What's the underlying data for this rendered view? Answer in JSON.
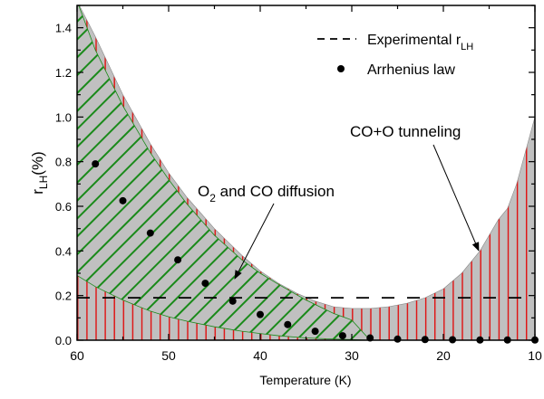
{
  "chart_data": {
    "type": "area",
    "title": "",
    "xlabel": "Temperature (K)",
    "ylabel_main": "r",
    "ylabel_sub": "LH",
    "ylabel_suffix": "(%)",
    "xlim": [
      60,
      10
    ],
    "ylim": [
      0,
      1.5
    ],
    "xticks": [
      60,
      50,
      40,
      30,
      20,
      10
    ],
    "yticks": [
      "0.0",
      "0.2",
      "0.4",
      "0.6",
      "0.8",
      "1.0",
      "1.2",
      "1.4"
    ],
    "grid": false,
    "legend_position": "top-right",
    "legend": [
      {
        "label_main": "Experimental r",
        "label_sub": "LH",
        "style": "dashed"
      },
      {
        "label_main": "Arrhenius law",
        "label_sub": "",
        "style": "dot"
      }
    ],
    "experimental_rLH": 0.19,
    "arrhenius": {
      "x": [
        58,
        55,
        52,
        49,
        46,
        43,
        40,
        37,
        34,
        31,
        28,
        25,
        22,
        19,
        16,
        13,
        10
      ],
      "y": [
        0.79,
        0.625,
        0.48,
        0.36,
        0.255,
        0.175,
        0.115,
        0.07,
        0.04,
        0.02,
        0.01,
        0.005,
        0.003,
        0.002,
        0.001,
        0.001,
        0.001
      ]
    },
    "regions": [
      {
        "name": "O2 and CO diffusion",
        "color": "#1a8a1a",
        "x": [
          60,
          58,
          55,
          52,
          50,
          48,
          45,
          42,
          40,
          38,
          35,
          32,
          30,
          28
        ],
        "upper": [
          1.52,
          1.3,
          1.05,
          0.84,
          0.72,
          0.61,
          0.47,
          0.36,
          0.3,
          0.25,
          0.18,
          0.12,
          0.09,
          0.0
        ],
        "lower": [
          0.29,
          0.24,
          0.18,
          0.13,
          0.105,
          0.085,
          0.06,
          0.04,
          0.03,
          0.02,
          0.01,
          0.005,
          0.003,
          0.0
        ]
      },
      {
        "name": "CO+O tunneling",
        "color": "#e01010",
        "x": [
          61,
          58,
          55,
          52,
          50,
          48,
          45,
          42,
          40,
          38,
          36,
          34,
          32,
          30,
          28,
          26,
          24,
          22,
          20,
          18,
          16,
          14,
          13,
          12,
          11,
          10
        ],
        "upper": [
          1.6,
          1.36,
          1.1,
          0.88,
          0.75,
          0.64,
          0.5,
          0.38,
          0.31,
          0.255,
          0.21,
          0.175,
          0.15,
          0.142,
          0.142,
          0.15,
          0.165,
          0.19,
          0.23,
          0.3,
          0.4,
          0.54,
          0.59,
          0.7,
          0.85,
          1.0
        ],
        "lower": 0.0
      }
    ],
    "annotations": [
      {
        "text_pre": "O",
        "text_sub": "2",
        "text_post": " and CO diffusion",
        "target": [
          43,
          0.29
        ]
      },
      {
        "text_pre": "CO+O tunneling",
        "text_sub": "",
        "text_post": "",
        "target": [
          16,
          0.4
        ]
      }
    ]
  }
}
